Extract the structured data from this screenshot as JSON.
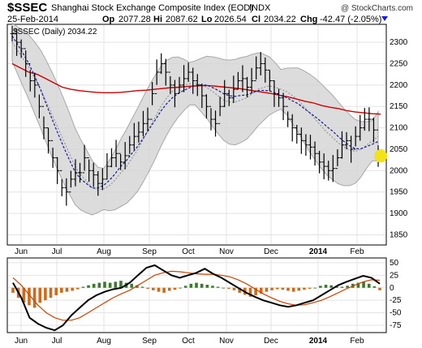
{
  "header": {
    "symbol": "$SSEC",
    "name": "Shanghai Stock Exchange Composite Index (EOD)",
    "exchange": "INDX",
    "date": "25-Feb-2014",
    "credit": "@ StockCharts.com",
    "op_label": "Op",
    "op_value": "2077.28",
    "hi_label": "Hi",
    "hi_value": "2087.62",
    "lo_label": "Lo",
    "lo_value": "2026.54",
    "cl_label": "Cl",
    "cl_value": "2034.22",
    "chg_label": "Chg",
    "chg_value": "-42.47 (-2.05%)"
  },
  "legend": "$SSEC (Daily) 2034.22",
  "colors": {
    "price": "#000000",
    "ma_long": "#cc0000",
    "ma_short": "#1a1a99",
    "band_fill": "#d6d6d6",
    "band_edge": "#9a9a9a",
    "hist_pos": "#3a7a2a",
    "hist_neg": "#d06a1a",
    "macd": "#000000",
    "signal": "#cc4400",
    "last_marker": "#f2e21a",
    "chg_arrow": "#1a1aee"
  },
  "chart_data": [
    {
      "type": "line",
      "title": "$SSEC (Daily) 2034.22",
      "x_tick_labels": [
        "Jun",
        "Jul",
        "Aug",
        "Sep",
        "Oct",
        "Nov",
        "Dec",
        "2014",
        "Feb"
      ],
      "ylim": [
        1830,
        2340
      ],
      "y_ticks": [
        1850,
        1900,
        1950,
        2000,
        2050,
        2100,
        2150,
        2200,
        2250,
        2300
      ],
      "grid": true,
      "last_close": 2034.22,
      "series": [
        {
          "name": "$SSEC",
          "values": [
            2320,
            2300,
            2285,
            2250,
            2210,
            2200,
            2150,
            2100,
            2070,
            2030,
            2000,
            1960,
            1950,
            1980,
            1995,
            1995,
            2030,
            2000,
            1990,
            1970,
            1980,
            2010,
            2030,
            2040,
            2020,
            2035,
            2060,
            2080,
            2090,
            2110,
            2120,
            2180,
            2230,
            2250,
            2230,
            2200,
            2180,
            2200,
            2215,
            2230,
            2210,
            2200,
            2175,
            2150,
            2120,
            2110,
            2150,
            2180,
            2170,
            2190,
            2210,
            2215,
            2195,
            2210,
            2240,
            2250,
            2235,
            2210,
            2180,
            2170,
            2150,
            2120,
            2100,
            2085,
            2070,
            2060,
            2055,
            2040,
            2020,
            2010,
            2000,
            2005,
            2030,
            2060,
            2070,
            2050,
            2080,
            2100,
            2120,
            2120,
            2095,
            2034
          ]
        },
        {
          "values": [
            2250,
            2240,
            2230,
            2225,
            2215,
            2205,
            2195,
            2190,
            2187,
            2185,
            2183,
            2182,
            2182,
            2183,
            2185,
            2187,
            2188,
            2190,
            2192,
            2194,
            2195,
            2197,
            2198,
            2199,
            2198,
            2196,
            2194,
            2192,
            2189,
            2186,
            2183,
            2180,
            2176,
            2172,
            2167,
            2162,
            2158,
            2152,
            2148,
            2145,
            2140,
            2137,
            2135,
            2133,
            2132
          ]
        },
        {
          "values": [
            2300,
            2280,
            2260,
            2240,
            2215,
            2190,
            2160,
            2130,
            2100,
            2070,
            2040,
            2010,
            1990,
            1975,
            1960,
            1955,
            1957,
            1965,
            1978,
            1995,
            2010,
            2030,
            2050,
            2075,
            2100,
            2125,
            2150,
            2170,
            2185,
            2195,
            2200,
            2203,
            2205,
            2200,
            2195,
            2185,
            2175,
            2165,
            2160,
            2160,
            2165,
            2170,
            2180,
            2190,
            2195,
            2198,
            2195,
            2190,
            2185,
            2175,
            2165,
            2150,
            2135,
            2120,
            2105,
            2090,
            2078,
            2065,
            2055,
            2048,
            2045,
            2050,
            2060,
            2070,
            2080
          ]
        }
      ]
    },
    {
      "type": "bar",
      "y_ticks": [
        50,
        25,
        0,
        -25,
        -50,
        -75
      ],
      "ylim": [
        -88,
        58
      ],
      "x_tick_labels": [
        "Jun",
        "Jul",
        "Aug",
        "Sep",
        "Oct",
        "Nov",
        "Dec",
        "2014",
        "Feb"
      ],
      "grid": true,
      "series": [
        {
          "values": [
            -10,
            -20,
            -30,
            -35,
            -40,
            -30,
            -25,
            -20,
            -15,
            -10,
            -8,
            -6,
            -3,
            2,
            5,
            8,
            10,
            12,
            10,
            12,
            14,
            10,
            8,
            5,
            2,
            -2,
            -5,
            -8,
            -10,
            -6,
            -4,
            0,
            4,
            8,
            10,
            8,
            6,
            4,
            2,
            0,
            -2,
            -5,
            -10,
            -14,
            -18,
            -15,
            -12,
            -8,
            -5,
            -3,
            -4,
            -6,
            -8,
            -6,
            -4,
            -2,
            0,
            4,
            6,
            5,
            3,
            2,
            4,
            8,
            10,
            12,
            8,
            3,
            -5
          ]
        },
        {
          "values": [
            10,
            -20,
            -60,
            -72,
            -80,
            -85,
            -75,
            -55,
            -40,
            -25,
            -15,
            -8,
            -3,
            0,
            10,
            25,
            40,
            45,
            35,
            25,
            20,
            25,
            30,
            38,
            28,
            20,
            10,
            0,
            -10,
            -18,
            -25,
            -30,
            -35,
            -38,
            -35,
            -30,
            -25,
            -15,
            -5,
            5,
            12,
            18,
            24,
            20,
            8
          ]
        },
        {
          "values": [
            20,
            5,
            -15,
            -35,
            -50,
            -60,
            -65,
            -65,
            -60,
            -50,
            -40,
            -30,
            -20,
            -12,
            -5,
            5,
            15,
            25,
            30,
            33,
            32,
            30,
            28,
            27,
            27,
            25,
            22,
            16,
            8,
            -2,
            -12,
            -20,
            -27,
            -32,
            -35,
            -34,
            -30,
            -25,
            -18,
            -10,
            -2,
            5,
            12,
            16,
            15
          ]
        }
      ]
    }
  ]
}
